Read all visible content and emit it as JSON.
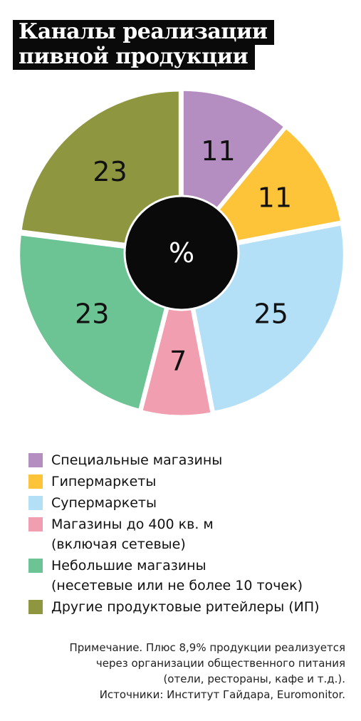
{
  "title_lines": [
    "Каналы реализации",
    "пивной продукции"
  ],
  "chart_data": {
    "type": "pie",
    "donut": true,
    "center_label": "%",
    "categories": [
      "Специальные магазины",
      "Гипермаркеты",
      "Супермаркеты",
      "Магазины до 400 кв. м (включая сетевые)",
      "Небольшие магазины (несетевые или не более 10 точек)",
      "Другие продуктовые ритейлеры (ИП)"
    ],
    "values": [
      11,
      11,
      25,
      7,
      23,
      23
    ],
    "colors": [
      "#b48ec0",
      "#fdc43a",
      "#b3e0f7",
      "#f19eb0",
      "#6cc494",
      "#8f9640"
    ],
    "unit": "%"
  },
  "legend": [
    {
      "line1": "Специальные магазины",
      "line2": "",
      "color": "#b48ec0"
    },
    {
      "line1": "Гипермаркеты",
      "line2": "",
      "color": "#fdc43a"
    },
    {
      "line1": "Супермаркеты",
      "line2": "",
      "color": "#b3e0f7"
    },
    {
      "line1": "Магазины до 400 кв. м",
      "line2": "(включая сетевые)",
      "color": "#f19eb0"
    },
    {
      "line1": "Небольшие магазины",
      "line2": "(несетевые или не более 10 точек)",
      "color": "#6cc494"
    },
    {
      "line1": "Другие продуктовые ритейлеры (ИП)",
      "line2": "",
      "color": "#8f9640"
    }
  ],
  "note_lines": [
    "Примечание. Плюс 8,9% продукции реализуется",
    "через организации общественного питания",
    "(отели, рестораны, кафе и т.д.).",
    "Источники: Институт Гайдара, Euromonitor."
  ]
}
